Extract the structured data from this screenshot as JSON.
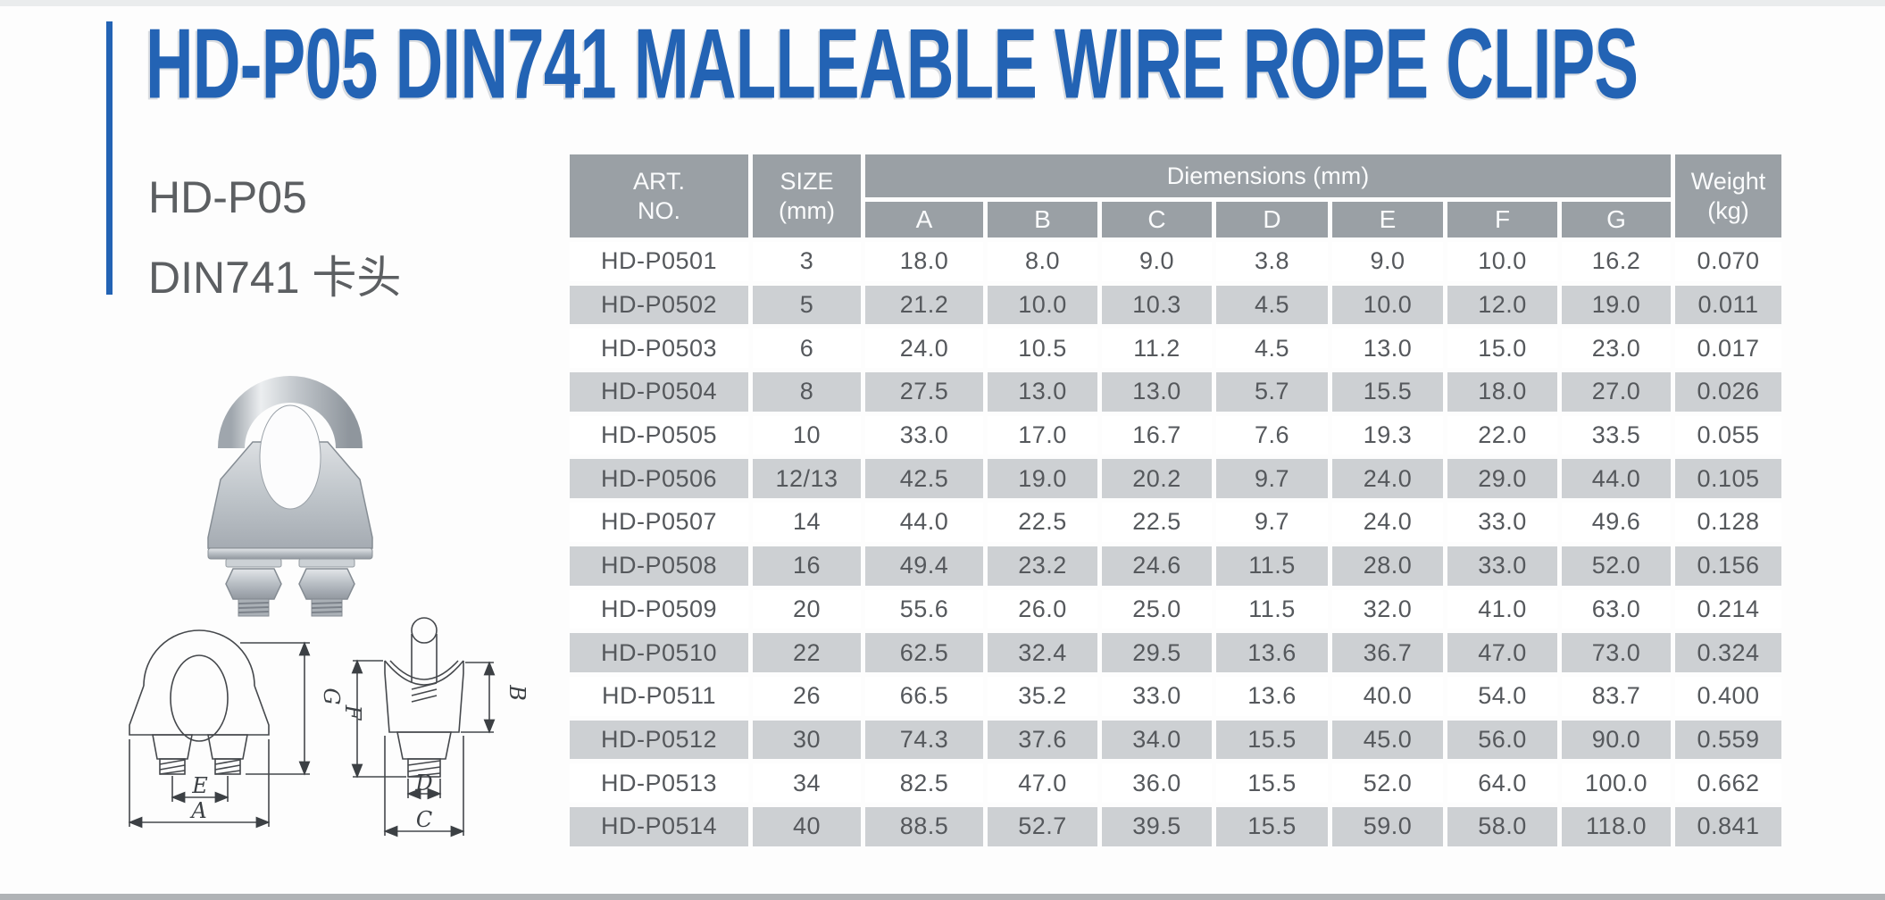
{
  "page": {
    "title": "HD-P05 DIN741 MALLEABLE WIRE ROPE CLIPS",
    "subtitle_line1": "HD-P05",
    "subtitle_line2": "DIN741 卡头",
    "accent_color": "#2363b4",
    "header_bg": "#9aa0a5",
    "row_alt_bg": "#cdd0d3"
  },
  "table": {
    "header": {
      "art_no_line1": "ART.",
      "art_no_line2": "NO.",
      "size_line1": "SIZE",
      "size_line2": "(mm)",
      "dimensions": "Diemensions (mm)",
      "dim_columns": [
        "A",
        "B",
        "C",
        "D",
        "E",
        "F",
        "G"
      ],
      "weight_line1": "Weight",
      "weight_line2": "(kg)"
    },
    "rows": [
      [
        "HD-P0501",
        "3",
        "18.0",
        "8.0",
        "9.0",
        "3.8",
        "9.0",
        "10.0",
        "16.2",
        "0.070"
      ],
      [
        "HD-P0502",
        "5",
        "21.2",
        "10.0",
        "10.3",
        "4.5",
        "10.0",
        "12.0",
        "19.0",
        "0.011"
      ],
      [
        "HD-P0503",
        "6",
        "24.0",
        "10.5",
        "11.2",
        "4.5",
        "13.0",
        "15.0",
        "23.0",
        "0.017"
      ],
      [
        "HD-P0504",
        "8",
        "27.5",
        "13.0",
        "13.0",
        "5.7",
        "15.5",
        "18.0",
        "27.0",
        "0.026"
      ],
      [
        "HD-P0505",
        "10",
        "33.0",
        "17.0",
        "16.7",
        "7.6",
        "19.3",
        "22.0",
        "33.5",
        "0.055"
      ],
      [
        "HD-P0506",
        "12/13",
        "42.5",
        "19.0",
        "20.2",
        "9.7",
        "24.0",
        "29.0",
        "44.0",
        "0.105"
      ],
      [
        "HD-P0507",
        "14",
        "44.0",
        "22.5",
        "22.5",
        "9.7",
        "24.0",
        "33.0",
        "49.6",
        "0.128"
      ],
      [
        "HD-P0508",
        "16",
        "49.4",
        "23.2",
        "24.6",
        "11.5",
        "28.0",
        "33.0",
        "52.0",
        "0.156"
      ],
      [
        "HD-P0509",
        "20",
        "55.6",
        "26.0",
        "25.0",
        "11.5",
        "32.0",
        "41.0",
        "63.0",
        "0.214"
      ],
      [
        "HD-P0510",
        "22",
        "62.5",
        "32.4",
        "29.5",
        "13.6",
        "36.7",
        "47.0",
        "73.0",
        "0.324"
      ],
      [
        "HD-P0511",
        "26",
        "66.5",
        "35.2",
        "33.0",
        "13.6",
        "40.0",
        "54.0",
        "83.7",
        "0.400"
      ],
      [
        "HD-P0512",
        "30",
        "74.3",
        "37.6",
        "34.0",
        "15.5",
        "45.0",
        "56.0",
        "90.0",
        "0.559"
      ],
      [
        "HD-P0513",
        "34",
        "82.5",
        "47.0",
        "36.0",
        "15.5",
        "52.0",
        "64.0",
        "100.0",
        "0.662"
      ],
      [
        "HD-P0514",
        "40",
        "88.5",
        "52.7",
        "39.5",
        "15.5",
        "59.0",
        "58.0",
        "118.0",
        "0.841"
      ]
    ]
  },
  "drawing": {
    "front_labels": {
      "g": "G",
      "e": "E",
      "a": "A"
    },
    "side_labels": {
      "f": "F",
      "b": "B",
      "d": "D",
      "c": "C"
    }
  }
}
